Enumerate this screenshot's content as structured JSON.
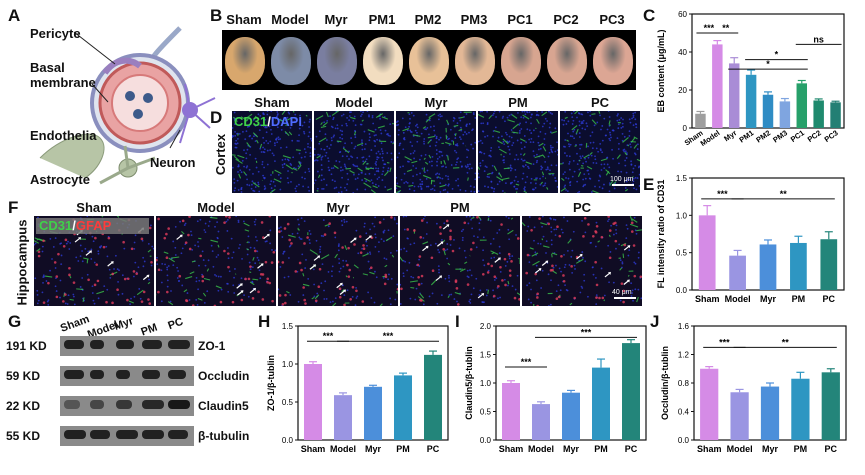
{
  "panels": {
    "a": "A",
    "b": "B",
    "c": "C",
    "d": "D",
    "e": "E",
    "f": "F",
    "g": "G",
    "h": "H",
    "i": "I",
    "j": "J"
  },
  "schematic": {
    "pericyte": "Pericyte",
    "basal_line1": "Basal",
    "basal_line2": "membrane",
    "endothelia": "Endothelia",
    "astrocyte": "Astrocyte",
    "neuron": "Neuron"
  },
  "panel_b": {
    "groups": [
      "Sham",
      "Model",
      "Myr",
      "PM1",
      "PM2",
      "PM3",
      "PC1",
      "PC2",
      "PC3"
    ],
    "brain_colors": [
      "#d8a76d",
      "#7d8ba7",
      "#7a7ea0",
      "#f2ddc0",
      "#e8c198",
      "#e3b896",
      "#d7a590",
      "#d8a591",
      "#dca694"
    ]
  },
  "panel_d": {
    "groups": [
      "Sham",
      "Model",
      "Myr",
      "PM",
      "PC"
    ],
    "stain_a": "CD31",
    "stain_sep": "/",
    "stain_b": "DAPI",
    "region": "Cortex",
    "scale": "100 μm"
  },
  "panel_f": {
    "groups": [
      "Sham",
      "Model",
      "Myr",
      "PM",
      "PC"
    ],
    "stain_a": "CD31",
    "stain_sep": "/",
    "stain_b": "GFAP",
    "region": "Hippocampus",
    "scale": "40 μm"
  },
  "panel_g": {
    "groups": [
      "Sham",
      "Model",
      "Myr",
      "PM",
      "PC"
    ],
    "rows": [
      {
        "kd": "191 KD",
        "protein": "ZO-1"
      },
      {
        "kd": "59 KD",
        "protein": "Occludin"
      },
      {
        "kd": "22 KD",
        "protein": "Claudin5"
      },
      {
        "kd": "55 KD",
        "protein": "β-tubulin"
      }
    ]
  },
  "chart_data": [
    {
      "id": "C",
      "type": "bar",
      "ylabel": "EB content (μg/mL)",
      "ylim": [
        0,
        60
      ],
      "yticks": [
        0,
        20,
        40,
        60
      ],
      "categories": [
        "Sham",
        "Model",
        "Myr",
        "PM1",
        "PM2",
        "PM3",
        "PC1",
        "PC2",
        "PC3"
      ],
      "values": [
        7.5,
        44,
        34,
        28,
        17.5,
        14,
        23.5,
        14.5,
        13.5
      ],
      "errors": [
        1.2,
        2,
        3,
        2.5,
        1.5,
        1.5,
        1.5,
        0.8,
        0.6
      ],
      "colors": [
        "#9e9e9e",
        "#d58be6",
        "#a98cd6",
        "#2e96c2",
        "#2f8cc4",
        "#7fa5e0",
        "#27a06a",
        "#1f8a6e",
        "#237f74"
      ],
      "significance": [
        {
          "text": "***"
        },
        {
          "text": "**"
        },
        {
          "text": "*"
        },
        {
          "text": "*"
        },
        {
          "text": "ns"
        }
      ]
    },
    {
      "id": "E",
      "type": "bar",
      "ylabel": "FL intensity ratio of CD31",
      "ylim": [
        0,
        1.5
      ],
      "yticks": [
        "0.0",
        "0.5",
        "1.0",
        "1.5"
      ],
      "categories": [
        "Sham",
        "Model",
        "Myr",
        "PM",
        "PC"
      ],
      "values": [
        1.0,
        0.46,
        0.61,
        0.63,
        0.68
      ],
      "errors": [
        0.13,
        0.07,
        0.06,
        0.09,
        0.1
      ],
      "colors": [
        "#d58be6",
        "#9a95e2",
        "#4c8fda",
        "#2e96c2",
        "#23857a"
      ],
      "significance": [
        {
          "text": "***"
        },
        {
          "text": "**"
        }
      ]
    },
    {
      "id": "H",
      "type": "bar",
      "ylabel": "ZO-1/β-tublin",
      "ylim": [
        0,
        1.5
      ],
      "yticks": [
        "0.0",
        "0.5",
        "1.0",
        "1.5"
      ],
      "categories": [
        "Sham",
        "Model",
        "Myr",
        "PM",
        "PC"
      ],
      "values": [
        1.0,
        0.59,
        0.7,
        0.85,
        1.12
      ],
      "errors": [
        0.03,
        0.03,
        0.02,
        0.03,
        0.05
      ],
      "colors": [
        "#d58be6",
        "#9a95e2",
        "#4c8fda",
        "#2e96c2",
        "#23857a"
      ],
      "significance": [
        {
          "text": "***"
        },
        {
          "text": "***"
        }
      ]
    },
    {
      "id": "I",
      "type": "bar",
      "ylabel": "Claudin5/β-tublin",
      "ylim": [
        0,
        2.0
      ],
      "yticks": [
        "0.0",
        "0.5",
        "1.0",
        "1.5",
        "2.0"
      ],
      "categories": [
        "Sham",
        "Model",
        "Myr",
        "PM",
        "PC"
      ],
      "values": [
        1.0,
        0.63,
        0.83,
        1.27,
        1.7
      ],
      "errors": [
        0.04,
        0.04,
        0.04,
        0.15,
        0.06
      ],
      "colors": [
        "#d58be6",
        "#9a95e2",
        "#4c8fda",
        "#2e96c2",
        "#23857a"
      ],
      "significance": [
        {
          "text": "***"
        },
        {
          "text": "***"
        }
      ]
    },
    {
      "id": "J",
      "type": "bar",
      "ylabel": "Occludin/β-tublin",
      "ylim": [
        0,
        1.6
      ],
      "yticks": [
        "0.0",
        "0.4",
        "0.8",
        "1.2",
        "1.6"
      ],
      "categories": [
        "Sham",
        "Model",
        "Myr",
        "PM",
        "PC"
      ],
      "values": [
        1.0,
        0.67,
        0.75,
        0.86,
        0.95
      ],
      "errors": [
        0.03,
        0.04,
        0.05,
        0.09,
        0.05
      ],
      "colors": [
        "#d58be6",
        "#9a95e2",
        "#4c8fda",
        "#2e96c2",
        "#23857a"
      ],
      "significance": [
        {
          "text": "***"
        },
        {
          "text": "**"
        }
      ]
    }
  ]
}
